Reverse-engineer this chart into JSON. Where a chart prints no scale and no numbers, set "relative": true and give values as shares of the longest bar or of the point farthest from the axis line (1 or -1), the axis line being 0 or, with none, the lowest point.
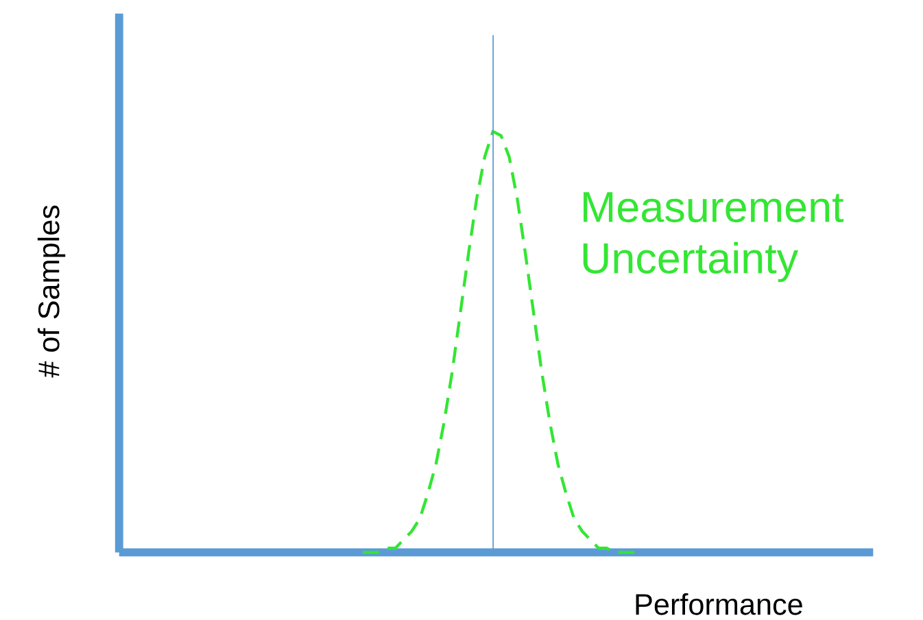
{
  "chart_data": {
    "type": "line",
    "relative": true,
    "xlabel": "Performance",
    "ylabel": "# of Samples",
    "annotations": [
      "Measurement Uncertainty"
    ],
    "line_style": "dashed",
    "categories": [
      null,
      null,
      null,
      null,
      null,
      null,
      null,
      null,
      null,
      null,
      null,
      null,
      null,
      null,
      null,
      null,
      null,
      null,
      null,
      null,
      null,
      null,
      null,
      null,
      null,
      null,
      null,
      null,
      null,
      null,
      null,
      null,
      null,
      null,
      null,
      null,
      null,
      null,
      null,
      null,
      null,
      null,
      null,
      null,
      null,
      null,
      null,
      null,
      null,
      null,
      null,
      null,
      null,
      null,
      null,
      null,
      null,
      null,
      null,
      null,
      null,
      null,
      null,
      null,
      null,
      null,
      null,
      null,
      null,
      null,
      null,
      null,
      null,
      null,
      null,
      null,
      null,
      null,
      null,
      null,
      null,
      null,
      null,
      null,
      null,
      null,
      null,
      null,
      null,
      null,
      null,
      null,
      null
    ],
    "series": [
      {
        "color": "#33e633",
        "values": [
          null,
          null,
          null,
          null,
          null,
          null,
          null,
          null,
          null,
          null,
          null,
          null,
          null,
          null,
          null,
          null,
          null,
          null,
          null,
          null,
          null,
          null,
          null,
          null,
          null,
          null,
          null,
          null,
          null,
          null,
          0,
          0,
          0,
          0.01,
          0.01,
          0.03,
          0.05,
          0.08,
          0.14,
          0.21,
          0.31,
          0.43,
          0.57,
          0.71,
          0.84,
          0.94,
          1,
          0.99,
          0.94,
          0.84,
          0.71,
          0.57,
          0.43,
          0.31,
          0.21,
          0.14,
          0.08,
          0.05,
          0.03,
          0.01,
          0.01,
          0,
          0,
          0,
          0,
          null,
          null,
          null,
          null,
          null,
          null,
          null,
          null,
          null,
          null,
          null,
          null,
          null,
          null,
          null,
          null,
          null,
          null,
          null,
          null,
          null,
          null,
          null,
          null,
          null,
          null,
          null,
          null
        ]
      }
    ]
  }
}
